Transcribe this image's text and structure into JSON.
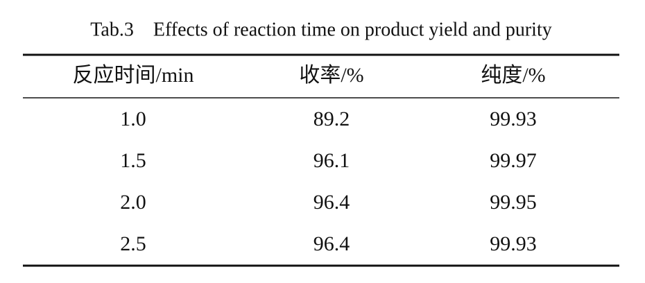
{
  "table": {
    "title": "Tab.3    Effects of reaction time on product yield and purity",
    "header": [
      "反应时间/min",
      "收率/%",
      "纯度/%"
    ],
    "rows": [
      [
        "1.0",
        "89.2",
        "99.93"
      ],
      [
        "1.5",
        "96.1",
        "99.97"
      ],
      [
        "2.0",
        "96.4",
        "99.95"
      ],
      [
        "2.5",
        "96.4",
        "99.93"
      ]
    ]
  }
}
